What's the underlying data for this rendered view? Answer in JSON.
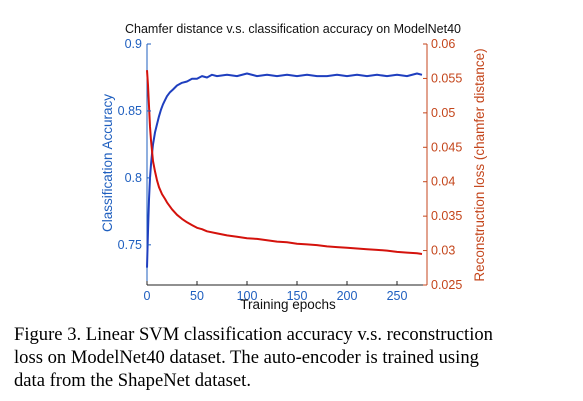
{
  "chart_data": {
    "type": "line",
    "title": "Chamfer distance v.s. classification accuracy on ModelNet40",
    "xlabel": "Training epochs",
    "ylabel_left": "Classification Accuracy",
    "ylabel_right": "Reconstruction loss (chamfer distance)",
    "xlim": [
      0,
      280
    ],
    "ylim_left": [
      0.72,
      0.9
    ],
    "ylim_right": [
      0.025,
      0.06
    ],
    "x_ticks": [
      0,
      50,
      100,
      150,
      200,
      250
    ],
    "y_left_ticks": [
      0.75,
      0.8,
      0.85,
      0.9
    ],
    "y_right_ticks": [
      0.025,
      0.03,
      0.035,
      0.04,
      0.045,
      0.05,
      0.055,
      0.06
    ],
    "grid": false,
    "series": [
      {
        "axis": "left",
        "color": "#1f3fbf",
        "x": [
          0,
          1,
          2,
          3,
          4,
          5,
          6,
          8,
          10,
          12,
          14,
          16,
          18,
          20,
          23,
          26,
          30,
          35,
          40,
          45,
          50,
          55,
          60,
          65,
          70,
          80,
          90,
          100,
          110,
          120,
          130,
          140,
          150,
          160,
          170,
          180,
          190,
          200,
          210,
          220,
          230,
          240,
          250,
          260,
          270,
          275
        ],
        "y": [
          0.733,
          0.76,
          0.784,
          0.8,
          0.81,
          0.818,
          0.825,
          0.834,
          0.84,
          0.846,
          0.851,
          0.855,
          0.858,
          0.861,
          0.864,
          0.866,
          0.869,
          0.871,
          0.872,
          0.874,
          0.874,
          0.876,
          0.875,
          0.877,
          0.876,
          0.877,
          0.876,
          0.878,
          0.876,
          0.877,
          0.876,
          0.877,
          0.876,
          0.877,
          0.876,
          0.876,
          0.877,
          0.876,
          0.877,
          0.876,
          0.877,
          0.876,
          0.877,
          0.876,
          0.878,
          0.877
        ]
      },
      {
        "axis": "right",
        "color": "#d4120c",
        "x": [
          0,
          1,
          2,
          3,
          4,
          5,
          6,
          8,
          10,
          12,
          15,
          18,
          20,
          25,
          30,
          35,
          40,
          45,
          50,
          55,
          60,
          70,
          80,
          90,
          100,
          110,
          120,
          130,
          140,
          150,
          160,
          170,
          180,
          190,
          200,
          210,
          220,
          230,
          240,
          250,
          260,
          270,
          275
        ],
        "y": [
          0.0562,
          0.054,
          0.051,
          0.048,
          0.046,
          0.0445,
          0.043,
          0.0415,
          0.0402,
          0.0392,
          0.0382,
          0.0375,
          0.037,
          0.036,
          0.0352,
          0.0346,
          0.0341,
          0.0337,
          0.0333,
          0.0331,
          0.0328,
          0.0325,
          0.0322,
          0.032,
          0.0318,
          0.0317,
          0.0315,
          0.0313,
          0.0312,
          0.031,
          0.0309,
          0.0308,
          0.0306,
          0.0305,
          0.0304,
          0.0303,
          0.0302,
          0.0301,
          0.03,
          0.0298,
          0.0297,
          0.0296,
          0.0295
        ]
      }
    ]
  },
  "caption": {
    "line1": "Figure 3. Linear SVM classification accuracy v.s. reconstruction",
    "line2": "loss on ModelNet40 dataset.  The auto-encoder is trained using",
    "line3": "data from the ShapeNet dataset."
  }
}
